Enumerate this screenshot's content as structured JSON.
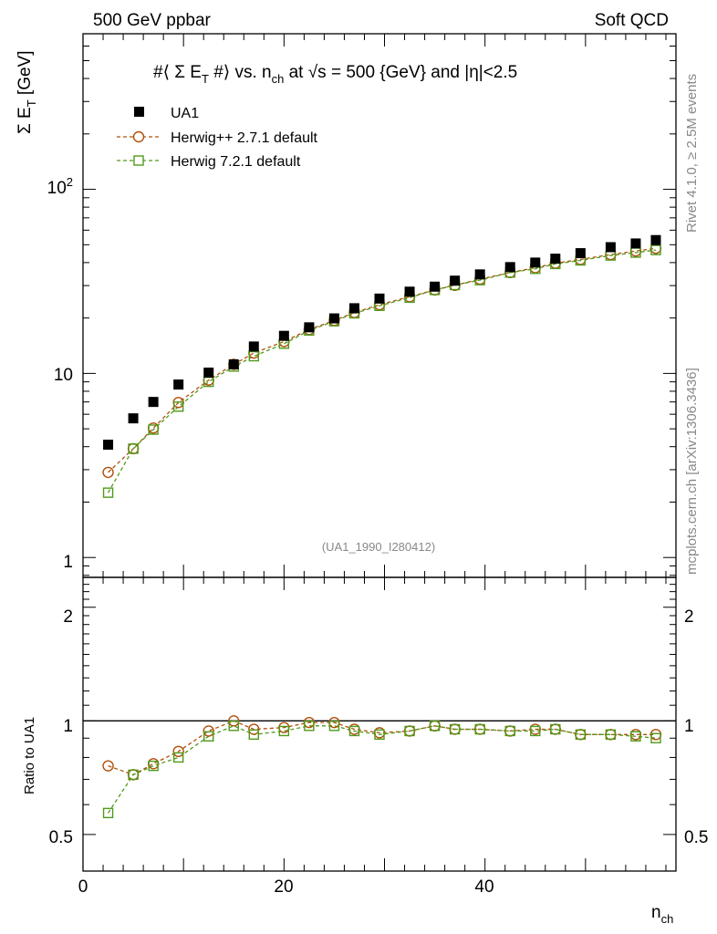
{
  "header": {
    "left": "500 GeV ppbar",
    "right": "Soft QCD"
  },
  "side": {
    "rivet": "Rivet 4.1.0, ≥ 2.5M events",
    "mcplots": "mcplots.cern.ch [arXiv:1306.3436]"
  },
  "chart_data": {
    "type": "scatter",
    "title": "#⟨ Σ E_T #⟩ vs. n_ch at √s = 500 {GeV} and |η|<2.5",
    "ylabel": "Σ E_T [GeV]",
    "xlabel": "n_ch",
    "ratio_ylabel": "Ratio to UA1",
    "watermark": "(UA1_1990_I280412)",
    "xlim": [
      0,
      59
    ],
    "ylim": [
      0.78,
      700
    ],
    "ratio_ylim": [
      0.4,
      2.4
    ],
    "yscale": "log",
    "x_ticks": [
      "0",
      "20",
      "40"
    ],
    "y_ticks": [
      "1",
      "10",
      "10²"
    ],
    "ratio_ticks": [
      "0.5",
      "1",
      "2"
    ],
    "x": [
      2.5,
      5,
      7,
      9.5,
      12.5,
      15,
      17,
      20,
      22.5,
      25,
      27,
      29.5,
      32.5,
      35,
      37,
      39.5,
      42.5,
      45,
      47,
      49.5,
      52.5,
      55,
      57
    ],
    "series": [
      {
        "name": "UA1",
        "marker": "filled-square",
        "color": "#000000",
        "values": [
          4.1,
          5.7,
          7.0,
          8.7,
          10.1,
          11.2,
          14.0,
          16.0,
          17.8,
          19.9,
          22.6,
          25.5,
          27.8,
          29.6,
          31.9,
          34.5,
          37.8,
          40.0,
          42.0,
          45.0,
          48.5,
          50.8,
          53.0
        ]
      },
      {
        "name": "Herwig++ 2.7.1 default",
        "marker": "open-circle",
        "color": "#b0500a",
        "values": [
          2.9,
          3.9,
          5.05,
          6.95,
          9.2,
          11.2,
          12.9,
          14.9,
          17.3,
          19.4,
          21.4,
          23.6,
          26.1,
          28.4,
          30.1,
          32.5,
          35.3,
          37.5,
          39.7,
          41.6,
          44.2,
          46.2,
          47.8
        ],
        "ratio": [
          0.76,
          0.72,
          0.77,
          0.83,
          0.94,
          1.0,
          0.95,
          0.96,
          0.99,
          0.99,
          0.95,
          0.93,
          0.94,
          0.97,
          0.95,
          0.95,
          0.94,
          0.95,
          0.95,
          0.92,
          0.92,
          0.92,
          0.92
        ]
      },
      {
        "name": "Herwig 7.2.1 default",
        "marker": "open-square",
        "color": "#4f9a1a",
        "values": [
          2.25,
          3.9,
          4.95,
          6.6,
          9.0,
          10.9,
          12.4,
          14.5,
          17.1,
          19.2,
          21.2,
          23.3,
          25.8,
          28.4,
          30.2,
          32.1,
          35.3,
          37.0,
          39.3,
          41.1,
          43.7,
          45.3,
          46.8
        ],
        "ratio": [
          0.57,
          0.72,
          0.76,
          0.8,
          0.91,
          0.97,
          0.92,
          0.94,
          0.97,
          0.97,
          0.94,
          0.92,
          0.94,
          0.97,
          0.95,
          0.95,
          0.94,
          0.94,
          0.95,
          0.92,
          0.92,
          0.91,
          0.9
        ]
      }
    ]
  }
}
